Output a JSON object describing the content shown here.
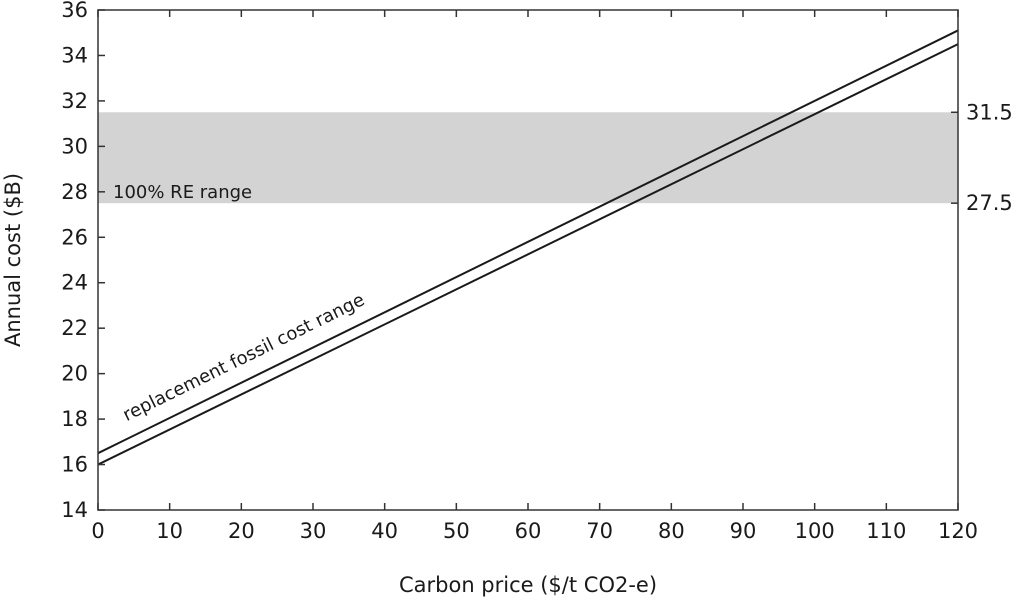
{
  "chart_data": {
    "type": "line",
    "xlabel": "Carbon price ($/t CO2-e)",
    "ylabel": "Annual cost ($B)",
    "xlim": [
      0,
      120
    ],
    "ylim": [
      14,
      36
    ],
    "x_ticks": [
      "0",
      "10",
      "20",
      "30",
      "40",
      "50",
      "60",
      "70",
      "80",
      "90",
      "100",
      "110",
      "120"
    ],
    "y_ticks": [
      "14",
      "16",
      "18",
      "20",
      "22",
      "24",
      "26",
      "28",
      "30",
      "32",
      "34",
      "36"
    ],
    "grid": false,
    "band": {
      "label": "100% RE range",
      "y_low": 27.5,
      "y_high": 31.5,
      "low_label": "27.5",
      "high_label": "31.5",
      "color": "#d3d3d3"
    },
    "series": [
      {
        "x": [
          0,
          120
        ],
        "y": [
          16.5,
          35.1
        ]
      },
      {
        "x": [
          0,
          120
        ],
        "y": [
          16.0,
          34.5
        ]
      }
    ],
    "series_annotation": {
      "text": "replacement fossil cost range",
      "x": 4,
      "y": 17.9
    },
    "line_color": "#1a1a1a"
  }
}
